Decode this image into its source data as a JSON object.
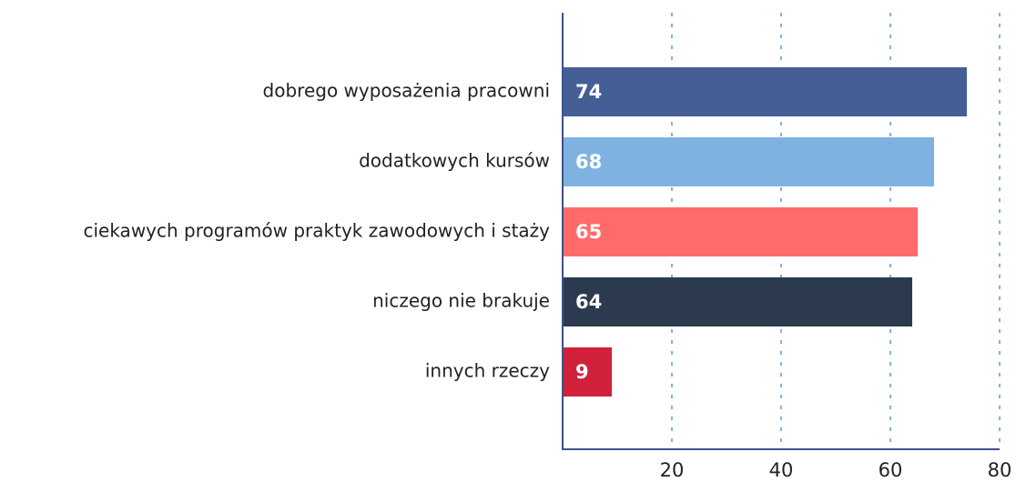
{
  "chart_data": {
    "type": "hbar",
    "categories": [
      "dobrego wyposażenia pracowni",
      "dodatkowych kursów",
      "ciekawych programów praktyk zawodowych i staży",
      "niczego nie brakuje",
      "innych rzeczy"
    ],
    "values": [
      74,
      68,
      65,
      64,
      9
    ],
    "colors": [
      "#455e96",
      "#7fb2e0",
      "#ff6b6b",
      "#2c3a4f",
      "#d0203a"
    ],
    "xlim": [
      0,
      80
    ],
    "xticks": [
      20,
      40,
      60,
      80
    ],
    "grid": true
  }
}
